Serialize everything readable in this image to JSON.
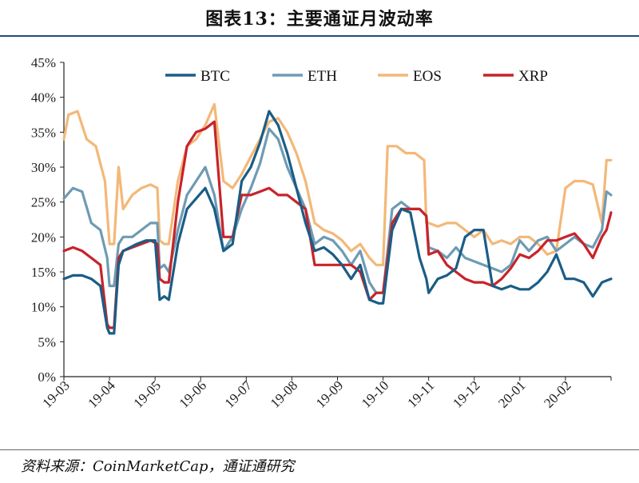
{
  "title": "图表13：主要通证月波动率",
  "source": "资料来源：CoinMarketCap，通证通研究",
  "colors": {
    "BTC": "#1b5d86",
    "ETH": "#6e9bb4",
    "EOS": "#f3b878",
    "XRP": "#c8232a",
    "title_rule": "#1f4e79"
  },
  "chart_data": {
    "type": "line",
    "title": "",
    "xlabel": "",
    "ylabel": "",
    "ylim": [
      0,
      45
    ],
    "yticks": [
      "0%",
      "5%",
      "10%",
      "15%",
      "20%",
      "25%",
      "30%",
      "35%",
      "40%",
      "45%"
    ],
    "xticks": [
      "19-03",
      "19-04",
      "19-05",
      "19-06",
      "19-07",
      "19-08",
      "19-09",
      "19-10",
      "19-11",
      "19-12",
      "20-01",
      "20-02"
    ],
    "xrange": [
      0,
      12
    ],
    "grid": false,
    "legend": "top",
    "series": [
      {
        "name": "BTC",
        "x": [
          0,
          0.2,
          0.4,
          0.6,
          0.8,
          0.95,
          1.0,
          1.1,
          1.2,
          1.3,
          1.45,
          1.6,
          1.8,
          2.0,
          2.1,
          2.2,
          2.3,
          2.5,
          2.7,
          2.9,
          3.1,
          3.3,
          3.5,
          3.7,
          3.9,
          4.1,
          4.3,
          4.5,
          4.7,
          4.9,
          5.1,
          5.3,
          5.5,
          5.7,
          5.9,
          6.1,
          6.3,
          6.5,
          6.7,
          6.9,
          7.0,
          7.2,
          7.4,
          7.6,
          7.8,
          7.95,
          8.0,
          8.2,
          8.4,
          8.6,
          8.8,
          9.0,
          9.2,
          9.4,
          9.6,
          9.8,
          10.0,
          10.2,
          10.4,
          10.6,
          10.8,
          11.0,
          11.2,
          11.4,
          11.6,
          11.8,
          12.0
        ],
        "values": [
          14,
          14.5,
          14.5,
          14,
          13,
          7,
          6.2,
          6.2,
          16,
          18,
          18.5,
          19,
          19.5,
          19.5,
          11,
          11.5,
          11,
          19,
          24,
          25.5,
          27,
          24,
          18,
          19,
          28,
          30,
          33.5,
          38,
          36,
          32,
          27,
          22,
          18,
          18.5,
          17.5,
          16,
          14,
          16,
          11,
          10.5,
          10.5,
          21,
          24,
          23.5,
          17,
          14,
          12,
          14,
          14.5,
          15.5,
          20,
          21,
          21,
          13,
          12.5,
          13,
          12.5,
          12.5,
          13.5,
          15,
          17.5,
          14,
          14,
          13.5,
          11.5,
          13.5,
          14
        ]
      },
      {
        "name": "ETH",
        "x": [
          0,
          0.2,
          0.4,
          0.6,
          0.8,
          0.95,
          1.0,
          1.1,
          1.2,
          1.3,
          1.5,
          1.7,
          1.9,
          2.05,
          2.1,
          2.2,
          2.3,
          2.5,
          2.7,
          2.9,
          3.1,
          3.3,
          3.5,
          3.7,
          3.9,
          4.1,
          4.3,
          4.5,
          4.7,
          4.9,
          5.1,
          5.3,
          5.5,
          5.7,
          5.9,
          6.1,
          6.3,
          6.5,
          6.7,
          6.85,
          7.0,
          7.2,
          7.4,
          7.6,
          7.8,
          7.95,
          8.0,
          8.2,
          8.4,
          8.6,
          8.8,
          9.0,
          9.2,
          9.4,
          9.6,
          9.8,
          10.0,
          10.2,
          10.4,
          10.6,
          10.8,
          11.0,
          11.2,
          11.4,
          11.6,
          11.8,
          11.9,
          12.0
        ],
        "values": [
          25.5,
          27,
          26.5,
          22,
          21,
          17,
          13,
          13,
          19,
          20,
          20,
          21,
          22,
          22,
          15.5,
          16,
          15,
          21,
          26,
          28,
          30,
          26,
          18,
          20,
          24,
          27,
          30.5,
          35.5,
          34,
          30,
          27,
          24,
          19,
          20,
          19.5,
          18,
          16,
          18,
          13.5,
          12,
          12,
          24,
          25,
          24,
          24,
          23,
          18.5,
          18,
          17,
          18.5,
          17,
          16.5,
          16,
          15.5,
          15,
          16,
          19.5,
          18,
          19.5,
          20,
          18,
          19,
          20,
          19,
          18.5,
          21,
          26.5,
          26
        ]
      },
      {
        "name": "EOS",
        "x": [
          0,
          0.1,
          0.3,
          0.5,
          0.7,
          0.9,
          1.0,
          1.1,
          1.2,
          1.3,
          1.5,
          1.7,
          1.9,
          2.05,
          2.1,
          2.2,
          2.3,
          2.5,
          2.7,
          2.9,
          3.1,
          3.3,
          3.5,
          3.7,
          3.9,
          4.1,
          4.3,
          4.5,
          4.7,
          4.9,
          5.1,
          5.3,
          5.5,
          5.7,
          5.9,
          6.1,
          6.3,
          6.5,
          6.7,
          6.85,
          7.0,
          7.1,
          7.3,
          7.5,
          7.7,
          7.9,
          7.95,
          8.0,
          8.2,
          8.4,
          8.6,
          8.8,
          9.0,
          9.2,
          9.4,
          9.6,
          9.8,
          10.0,
          10.2,
          10.4,
          10.6,
          10.8,
          11.0,
          11.2,
          11.4,
          11.6,
          11.8,
          11.9,
          12.0
        ],
        "values": [
          34,
          37.5,
          38,
          34,
          33,
          28,
          19,
          19,
          30,
          24,
          26,
          27,
          27.5,
          27,
          19.5,
          19,
          19,
          28,
          33,
          34,
          36,
          39,
          28,
          27,
          29,
          31.5,
          34,
          36.5,
          37,
          35,
          32,
          28,
          22,
          21,
          20.5,
          19.5,
          18,
          19,
          17,
          16,
          16,
          33,
          33,
          32,
          32,
          31,
          22,
          22,
          21.5,
          22,
          22,
          21,
          20,
          21,
          19,
          19.5,
          19,
          20,
          20,
          19,
          17.5,
          18,
          27,
          28,
          28,
          27.5,
          22,
          31,
          31
        ]
      },
      {
        "name": "XRP",
        "x": [
          0,
          0.2,
          0.4,
          0.6,
          0.8,
          0.95,
          1.0,
          1.1,
          1.2,
          1.3,
          1.5,
          1.7,
          1.9,
          2.05,
          2.1,
          2.2,
          2.3,
          2.5,
          2.7,
          2.9,
          3.1,
          3.3,
          3.5,
          3.7,
          3.9,
          4.1,
          4.3,
          4.5,
          4.7,
          4.9,
          5.1,
          5.3,
          5.5,
          5.7,
          5.9,
          6.1,
          6.3,
          6.5,
          6.7,
          6.85,
          7.0,
          7.2,
          7.4,
          7.6,
          7.8,
          7.95,
          8.0,
          8.2,
          8.4,
          8.6,
          8.8,
          9.0,
          9.2,
          9.4,
          9.6,
          9.8,
          10.0,
          10.2,
          10.4,
          10.6,
          10.8,
          11.0,
          11.2,
          11.4,
          11.6,
          11.8,
          11.9,
          12.0
        ],
        "values": [
          18,
          18.5,
          18,
          17,
          16,
          7.5,
          7,
          7,
          17,
          18,
          18.5,
          19,
          19.5,
          19,
          14,
          13.5,
          13.5,
          25,
          33,
          35,
          35.5,
          36.5,
          20,
          20,
          26,
          26,
          26.5,
          27,
          26,
          26,
          25,
          24,
          16,
          16,
          16,
          16,
          16,
          15,
          11,
          12,
          12,
          22,
          24,
          24,
          24,
          23,
          17.5,
          18,
          16,
          15,
          14,
          13.5,
          13.5,
          13,
          14,
          15.5,
          17.5,
          17,
          18,
          19.5,
          19.5,
          20,
          20.5,
          19,
          17,
          20,
          21,
          23.5
        ]
      }
    ]
  }
}
